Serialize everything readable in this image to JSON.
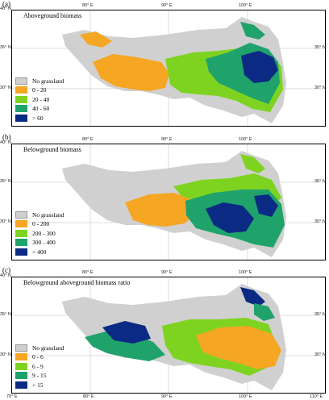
{
  "colors": {
    "no_grassland": "#d0d0d0",
    "class1": "#f5a623",
    "class2": "#7ed321",
    "class3": "#1fa36b",
    "class4": "#0b2a84",
    "grid": "#bbbbbb"
  },
  "axes": {
    "lat_labels": [
      "40° N",
      "35° N",
      "30° N"
    ],
    "lon_labels": [
      "70° E",
      "80° E",
      "90° E",
      "100° E",
      "110° E"
    ]
  },
  "panels": [
    {
      "letter": "(a)",
      "title": "Aboveground biomass",
      "legend": [
        "No grassland",
        "0 - 20",
        "20 - 40",
        "40 - 60",
        "> 60"
      ]
    },
    {
      "letter": "(b)",
      "title": "Belowground biomass",
      "legend": [
        "No grassland",
        "0 - 200",
        "200 - 300",
        "300 - 400",
        "> 400"
      ]
    },
    {
      "letter": "(c)",
      "title": "Belowground aboveground biomass ratio",
      "legend": [
        "No grassland",
        "0 - 6",
        "6 - 9",
        "9 - 15",
        "> 15"
      ]
    }
  ]
}
